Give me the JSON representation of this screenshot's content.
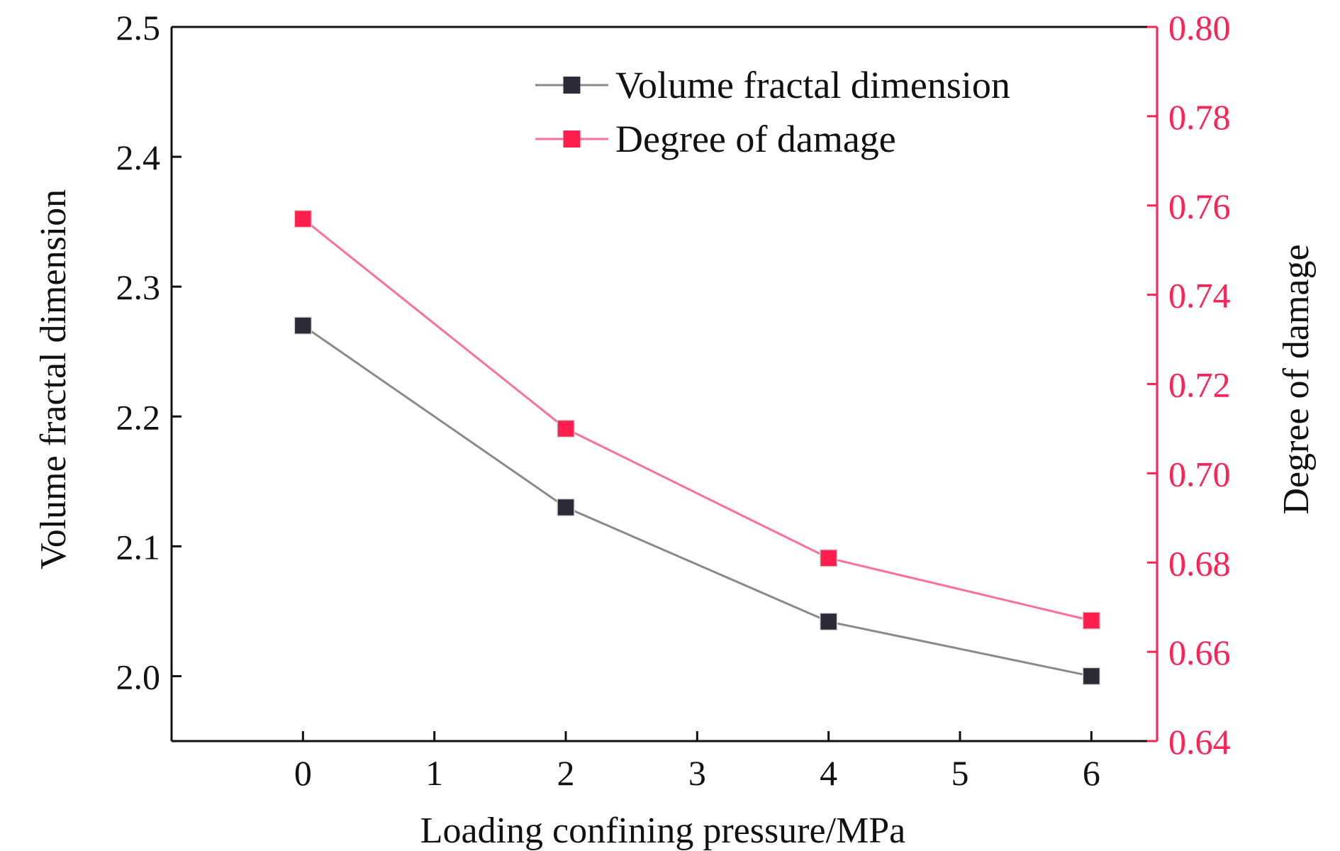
{
  "colors": {
    "left_axis": "#111111",
    "right_axis": "#ff2255",
    "series_volume_line": "#8a8a8a",
    "series_volume_marker": "#2b2b38",
    "series_damage_line": "#ff6f9a",
    "series_damage_marker": "#ff1f4e"
  },
  "legend_position": "top-right",
  "chart_data": {
    "type": "line",
    "title": "",
    "xlabel": "Loading confining pressure/MPa",
    "ylabel": "Volume fractal dimension",
    "y2label": "Degree of damage",
    "xlim": [
      -1,
      6.5
    ],
    "ylim": [
      1.95,
      2.5
    ],
    "y2lim": [
      0.64,
      0.8
    ],
    "x_ticks": [
      0,
      1,
      2,
      3,
      4,
      5,
      6
    ],
    "x_tick_labels": [
      "0",
      "1",
      "2",
      "3",
      "4",
      "5",
      "6"
    ],
    "y_ticks": [
      2.0,
      2.1,
      2.2,
      2.3,
      2.4,
      2.5
    ],
    "y_tick_labels": [
      "2.0",
      "2.1",
      "2.2",
      "2.3",
      "2.4",
      "2.5"
    ],
    "y2_ticks": [
      0.64,
      0.66,
      0.68,
      0.7,
      0.72,
      0.74,
      0.76,
      0.78,
      0.8
    ],
    "y2_tick_labels": [
      "0.64",
      "0.66",
      "0.68",
      "0.70",
      "0.72",
      "0.74",
      "0.76",
      "0.78",
      "0.80"
    ],
    "grid": false,
    "series": [
      {
        "name": "Volume fractal dimension",
        "axis": "left",
        "x": [
          0,
          2,
          4,
          6
        ],
        "values": [
          2.27,
          2.13,
          2.042,
          2.0
        ]
      },
      {
        "name": "Degree of damage",
        "axis": "right",
        "x": [
          0,
          2,
          4,
          6
        ],
        "values": [
          0.757,
          0.71,
          0.681,
          0.667
        ]
      }
    ]
  }
}
